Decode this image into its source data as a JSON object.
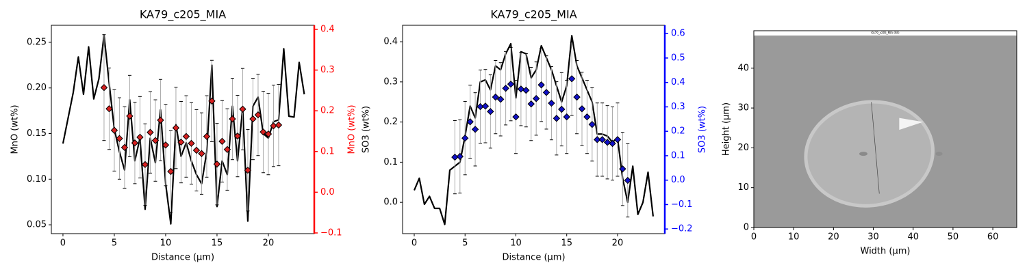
{
  "chart_data": [
    {
      "type": "line",
      "title": "KA79_c205_MIA",
      "xlabel": "Distance (µm)",
      "ylabel": "MnO (wt%)",
      "y2label": "MnO (wt%)",
      "y2color": "#ff0000",
      "xlim": [
        -1.13,
        24.47
      ],
      "ylim": [
        0.0403,
        0.2687
      ],
      "y2lim": [
        -0.1017,
        0.41
      ],
      "xticks": [
        0,
        5,
        10,
        15,
        20
      ],
      "yticks": [
        0.05,
        {
          "value": 0.1,
          "label": "0.10"
        },
        0.15,
        {
          "value": 0.2,
          "label": "0.20"
        },
        0.25
      ],
      "y2ticks": [
        {
          "value": -0.1,
          "label": "−0.1"
        },
        {
          "value": 0,
          "label": "0.0"
        },
        0.1,
        0.2,
        0.3,
        0.4
      ],
      "series": [
        {
          "color": "#000000",
          "marker": "line",
          "x": [
            0,
            1,
            1.5,
            2,
            2.5,
            3,
            3.5,
            4,
            4.5,
            5,
            5.5,
            6,
            6.5,
            7,
            7.5,
            8,
            8.5,
            9,
            9.5,
            10,
            10.5,
            11,
            11.5,
            12,
            12.5,
            13,
            13.5,
            14,
            14.5,
            15,
            15.5,
            16,
            16.5,
            17,
            17.5,
            18,
            18.5,
            19,
            19.5,
            20,
            20.5,
            21,
            21.5,
            22,
            22.5,
            23,
            23.5
          ],
          "values": [
            0.139,
            0.195,
            0.234,
            0.193,
            0.245,
            0.188,
            0.21,
            0.258,
            0.205,
            0.155,
            0.13,
            0.11,
            0.187,
            0.12,
            0.145,
            0.067,
            0.145,
            0.118,
            0.176,
            0.095,
            0.051,
            0.16,
            0.125,
            0.14,
            0.12,
            0.105,
            0.095,
            0.13,
            0.225,
            0.07,
            0.12,
            0.105,
            0.18,
            0.12,
            0.178,
            0.054,
            0.18,
            0.19,
            0.15,
            0.145,
            0.163,
            0.165,
            0.243,
            0.169,
            0.168,
            0.228,
            0.193
          ]
        },
        {
          "color": "#d62020",
          "marker": "diamond",
          "axis": "y2",
          "x": [
            4,
            4.5,
            5,
            5.5,
            6,
            6.5,
            7,
            7.5,
            8,
            8.5,
            9,
            9.5,
            10,
            10.5,
            11,
            11.5,
            12,
            12.5,
            13,
            13.5,
            14,
            14.5,
            15,
            15.5,
            16,
            16.5,
            17,
            17.5,
            18,
            18.5,
            19,
            19.5,
            20,
            20.5,
            21
          ],
          "values": [
            0.257,
            0.205,
            0.152,
            0.132,
            0.11,
            0.187,
            0.121,
            0.135,
            0.068,
            0.147,
            0.127,
            0.177,
            0.116,
            0.051,
            0.158,
            0.123,
            0.137,
            0.12,
            0.103,
            0.095,
            0.137,
            0.224,
            0.069,
            0.125,
            0.105,
            0.18,
            0.138,
            0.204,
            0.054,
            0.18,
            0.19,
            0.148,
            0.143,
            0.163,
            0.165
          ],
          "errors": [
            0.13,
            0.1,
            0.1,
            0.1,
            0.1,
            0.1,
            0.1,
            0.1,
            0.1,
            0.1,
            0.1,
            0.1,
            0.1,
            0.1,
            0.1,
            0.1,
            0.1,
            0.1,
            0.1,
            0.1,
            0.1,
            0.1,
            0.1,
            0.1,
            0.1,
            0.1,
            0.1,
            0.1,
            0.1,
            0.1,
            0.1,
            0.1,
            0.1,
            0.1,
            0.1
          ]
        }
      ]
    },
    {
      "type": "line",
      "title": "KA79_c205_MIA",
      "xlabel": "Distance (µm)",
      "ylabel": "SO3 (wt%)",
      "y2label": "SO3 (wt%)",
      "y2color": "#0000ff",
      "xlim": [
        -1.145,
        24.65
      ],
      "ylim": [
        -0.078,
        0.441
      ],
      "y2lim": [
        -0.219,
        0.634
      ],
      "xticks": [
        0,
        5,
        10,
        15,
        20
      ],
      "yticks": [
        {
          "value": 0,
          "label": "0.0"
        },
        0.1,
        0.2,
        0.3,
        0.4
      ],
      "y2ticks": [
        {
          "value": -0.2,
          "label": "−0.2"
        },
        {
          "value": -0.1,
          "label": "−0.1"
        },
        {
          "value": 0,
          "label": "0.0"
        },
        0.1,
        0.2,
        0.3,
        0.4,
        0.5,
        0.6
      ],
      "series": [
        {
          "color": "#000000",
          "marker": "line",
          "x": [
            0,
            0.5,
            1,
            1.5,
            2,
            2.5,
            3,
            3.5,
            4,
            4.5,
            5,
            5.5,
            6,
            6.5,
            7,
            7.5,
            8,
            8.5,
            9,
            9.5,
            10,
            10.5,
            11,
            11.5,
            12,
            12.5,
            13,
            13.5,
            14,
            14.5,
            15,
            15.5,
            16,
            16.5,
            17,
            17.5,
            18,
            18.5,
            19,
            19.5,
            20,
            20.5,
            21,
            21.5,
            22,
            22.5,
            23,
            23.5
          ],
          "values": [
            0.03,
            0.06,
            -0.005,
            0.015,
            -0.015,
            -0.015,
            -0.055,
            0.08,
            0.09,
            0.1,
            0.165,
            0.24,
            0.21,
            0.3,
            0.305,
            0.28,
            0.34,
            0.33,
            0.37,
            0.395,
            0.26,
            0.375,
            0.37,
            0.31,
            0.33,
            0.39,
            0.36,
            0.33,
            0.29,
            0.25,
            0.29,
            0.415,
            0.34,
            0.31,
            0.28,
            0.25,
            0.17,
            0.17,
            0.165,
            0.15,
            0.16,
            0.06,
            0.0,
            0.09,
            -0.03,
            0.0,
            0.075,
            -0.035
          ]
        },
        {
          "color": "#1010c8",
          "marker": "diamond",
          "axis": "y2",
          "x": [
            4,
            4.5,
            5,
            5.5,
            6,
            6.5,
            7,
            7.5,
            8,
            8.5,
            9,
            9.5,
            10,
            10.5,
            11,
            11.5,
            12,
            12.5,
            13,
            13.5,
            14,
            14.5,
            15,
            15.5,
            16,
            16.5,
            17,
            17.5,
            18,
            18.5,
            19,
            19.5,
            20,
            20.5,
            21
          ],
          "values": [
            0.094,
            0.097,
            0.172,
            0.239,
            0.208,
            0.301,
            0.303,
            0.281,
            0.34,
            0.331,
            0.376,
            0.393,
            0.259,
            0.373,
            0.368,
            0.312,
            0.334,
            0.39,
            0.359,
            0.315,
            0.253,
            0.29,
            0.259,
            0.415,
            0.34,
            0.292,
            0.259,
            0.228,
            0.166,
            0.166,
            0.155,
            0.15,
            0.166,
            0.046,
            -0.001
          ],
          "errors": [
            0.15,
            0.15,
            0.15,
            0.15,
            0.15,
            0.15,
            0.15,
            0.15,
            0.15,
            0.15,
            0.15,
            0.15,
            0.15,
            0.15,
            0.15,
            0.15,
            0.15,
            0.15,
            0.15,
            0.15,
            0.15,
            0.15,
            0.15,
            0.15,
            0.15,
            0.15,
            0.15,
            0.15,
            0.15,
            0.15,
            0.15,
            0.15,
            0.15,
            0.15,
            0.15
          ]
        }
      ]
    },
    {
      "type": "image",
      "xlabel": "Width (µm)",
      "ylabel": "Height (µm)",
      "image_caption": "KA79_c205_MIA (SE)",
      "xlim": [
        0,
        66
      ],
      "ylim": [
        0,
        49.4
      ],
      "xticks": [
        0,
        10,
        20,
        30,
        40,
        50,
        60
      ],
      "yticks": [
        0,
        10,
        20,
        30,
        40
      ]
    }
  ]
}
